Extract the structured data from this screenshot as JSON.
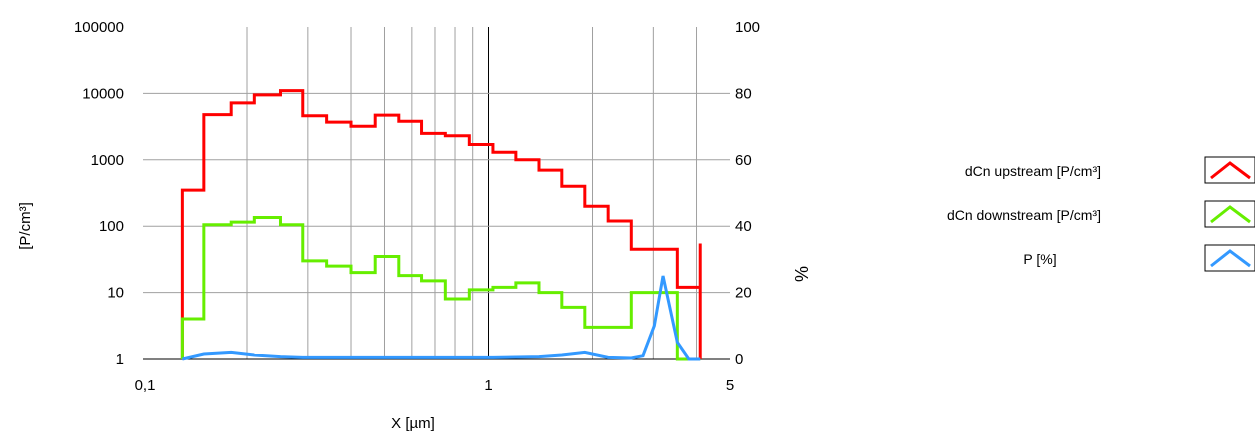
{
  "chart_data": {
    "type": "line",
    "title": "",
    "xlabel": "X [µm]",
    "ylabel_left": "[P/cm³]",
    "ylabel_right": "%",
    "x_scale": "log",
    "x_range": [
      0.1,
      5
    ],
    "x_ticks": [
      "0,1",
      "1",
      "5"
    ],
    "y_left_scale": "log",
    "y_left_range": [
      1,
      100000
    ],
    "y_left_ticks": [
      "1",
      "10",
      "100",
      "1000",
      "10000",
      "100000"
    ],
    "y_right_range": [
      0,
      100
    ],
    "y_right_ticks": [
      "0",
      "20",
      "40",
      "60",
      "80",
      "100"
    ],
    "grid": true,
    "legend_position": "right",
    "series": [
      {
        "name": "dCn upstream [P/cm³]",
        "color": "#ff0000",
        "axis": "left",
        "step": true,
        "x": [
          0.13,
          0.15,
          0.18,
          0.21,
          0.25,
          0.29,
          0.34,
          0.4,
          0.47,
          0.55,
          0.64,
          0.75,
          0.88,
          1.03,
          1.2,
          1.4,
          1.63,
          1.9,
          2.22,
          2.59,
          3.02,
          3.52,
          4.1
        ],
        "values": [
          350,
          4800,
          7200,
          9500,
          11000,
          4600,
          3700,
          3200,
          4700,
          3800,
          2500,
          2300,
          1700,
          1300,
          1000,
          700,
          400,
          200,
          120,
          45,
          45,
          12,
          55
        ]
      },
      {
        "name": "dCn downstream [P/cm³]",
        "color": "#66ee00",
        "axis": "left",
        "step": true,
        "x": [
          0.13,
          0.15,
          0.18,
          0.21,
          0.25,
          0.29,
          0.34,
          0.4,
          0.47,
          0.55,
          0.64,
          0.75,
          0.88,
          1.03,
          1.2,
          1.4,
          1.63,
          1.9,
          2.22,
          2.59,
          3.02,
          3.52,
          4.1
        ],
        "values": [
          4,
          105,
          115,
          135,
          105,
          30,
          25,
          20,
          35,
          18,
          15,
          8,
          11,
          12,
          14,
          10,
          6,
          3,
          3,
          10,
          10,
          1,
          1
        ]
      },
      {
        "name": "P [%]",
        "color": "#3399ff",
        "axis": "right",
        "step": false,
        "x": [
          0.13,
          0.15,
          0.18,
          0.21,
          0.25,
          0.29,
          0.34,
          0.4,
          0.47,
          0.55,
          0.64,
          0.75,
          0.88,
          1.03,
          1.2,
          1.4,
          1.63,
          1.9,
          2.22,
          2.59,
          2.8,
          3.02,
          3.2,
          3.52,
          3.8,
          4.1
        ],
        "values": [
          0,
          1.5,
          2,
          1.2,
          0.7,
          0.5,
          0.5,
          0.5,
          0.5,
          0.5,
          0.5,
          0.5,
          0.5,
          0.5,
          0.6,
          0.7,
          1.2,
          2,
          0.5,
          0.3,
          1,
          10,
          25,
          5,
          0,
          0
        ]
      }
    ]
  }
}
